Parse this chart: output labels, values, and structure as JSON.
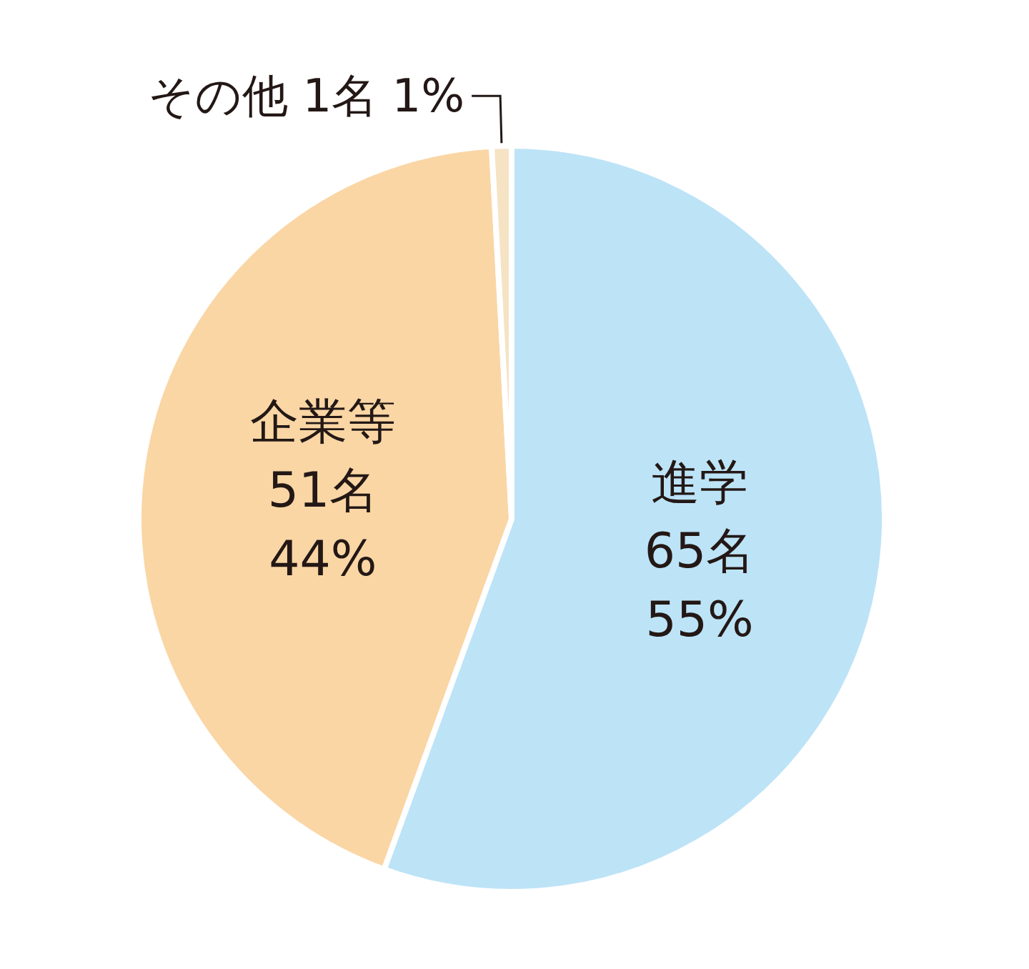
{
  "chart_data": {
    "type": "pie",
    "categories": [
      "進学",
      "企業等",
      "その他"
    ],
    "values": [
      65,
      51,
      1
    ],
    "colors": [
      "#bde3f7",
      "#fad6a5",
      "#f5e3c4"
    ],
    "value_labels": [
      "65名 55%",
      "51名 44%",
      "1名 1%"
    ],
    "legend": false
  }
}
